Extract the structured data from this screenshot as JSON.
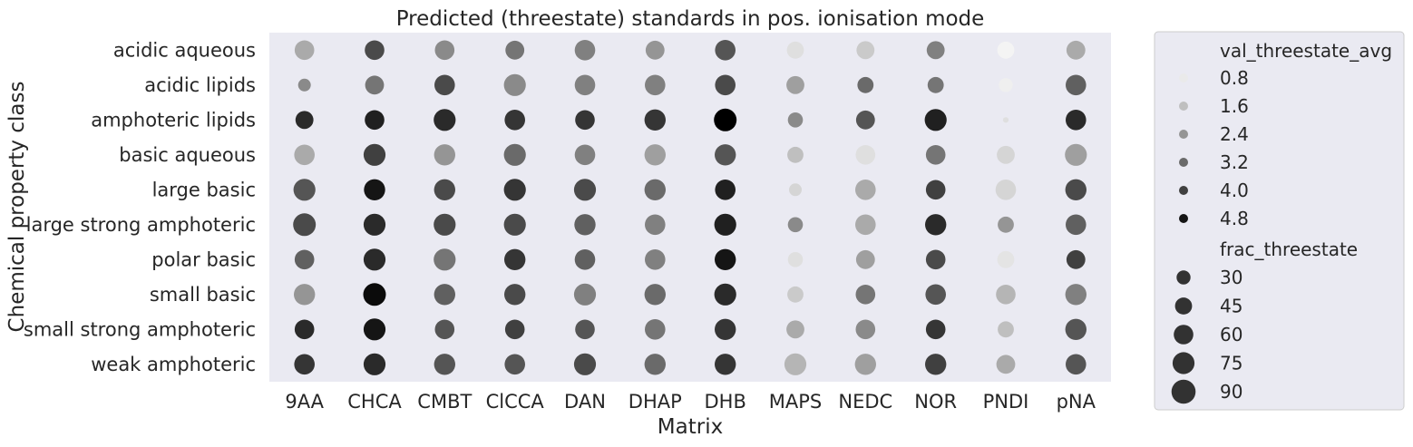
{
  "chart_data": {
    "type": "scatter",
    "title": "Predicted (threestate) standards in pos. ionisation mode",
    "xlabel": "Matrix",
    "ylabel": "Chemical property class",
    "categories_x": [
      "9AA",
      "CHCA",
      "CMBT",
      "ClCCA",
      "DAN",
      "DHAP",
      "DHB",
      "MAPS",
      "NEDC",
      "NOR",
      "PNDI",
      "pNA"
    ],
    "categories_y": [
      "acidic aqueous",
      "acidic lipids",
      "amphoteric lipids",
      "basic aqueous",
      "large basic",
      "large strong amphoteric",
      "polar basic",
      "small basic",
      "small strong amphoteric",
      "weak amphoteric"
    ],
    "color_variable": "val_threestate_avg",
    "size_variable": "frac_threestate",
    "color_range": [
      0.4,
      5.2
    ],
    "size_range": [
      0,
      100
    ],
    "grid": false,
    "legend_placement": "outside-right",
    "points": [
      {
        "x": "9AA",
        "y": "acidic aqueous",
        "color": 2.0,
        "size": 60
      },
      {
        "x": "CHCA",
        "y": "acidic aqueous",
        "color": 3.8,
        "size": 60
      },
      {
        "x": "CMBT",
        "y": "acidic aqueous",
        "color": 2.6,
        "size": 60
      },
      {
        "x": "ClCCA",
        "y": "acidic aqueous",
        "color": 3.0,
        "size": 55
      },
      {
        "x": "DAN",
        "y": "acidic aqueous",
        "color": 2.8,
        "size": 65
      },
      {
        "x": "DHAP",
        "y": "acidic aqueous",
        "color": 2.4,
        "size": 55
      },
      {
        "x": "DHB",
        "y": "acidic aqueous",
        "color": 3.6,
        "size": 65
      },
      {
        "x": "MAPS",
        "y": "acidic aqueous",
        "color": 1.0,
        "size": 45
      },
      {
        "x": "NEDC",
        "y": "acidic aqueous",
        "color": 1.4,
        "size": 50
      },
      {
        "x": "NOR",
        "y": "acidic aqueous",
        "color": 2.8,
        "size": 50
      },
      {
        "x": "PNDI",
        "y": "acidic aqueous",
        "color": 0.6,
        "size": 45
      },
      {
        "x": "pNA",
        "y": "acidic aqueous",
        "color": 2.0,
        "size": 55
      },
      {
        "x": "9AA",
        "y": "acidic lipids",
        "color": 2.6,
        "size": 25
      },
      {
        "x": "CHCA",
        "y": "acidic lipids",
        "color": 3.0,
        "size": 55
      },
      {
        "x": "CMBT",
        "y": "acidic lipids",
        "color": 3.8,
        "size": 65
      },
      {
        "x": "ClCCA",
        "y": "acidic lipids",
        "color": 2.6,
        "size": 75
      },
      {
        "x": "DAN",
        "y": "acidic lipids",
        "color": 2.8,
        "size": 65
      },
      {
        "x": "DHAP",
        "y": "acidic lipids",
        "color": 2.8,
        "size": 65
      },
      {
        "x": "DHB",
        "y": "acidic lipids",
        "color": 3.8,
        "size": 65
      },
      {
        "x": "MAPS",
        "y": "acidic lipids",
        "color": 2.2,
        "size": 50
      },
      {
        "x": "NEDC",
        "y": "acidic lipids",
        "color": 3.2,
        "size": 40
      },
      {
        "x": "NOR",
        "y": "acidic lipids",
        "color": 3.0,
        "size": 40
      },
      {
        "x": "PNDI",
        "y": "acidic lipids",
        "color": 0.7,
        "size": 30
      },
      {
        "x": "pNA",
        "y": "acidic lipids",
        "color": 3.4,
        "size": 65
      },
      {
        "x": "9AA",
        "y": "amphoteric lipids",
        "color": 4.4,
        "size": 50
      },
      {
        "x": "CHCA",
        "y": "amphoteric lipids",
        "color": 4.6,
        "size": 60
      },
      {
        "x": "CMBT",
        "y": "amphoteric lipids",
        "color": 4.4,
        "size": 75
      },
      {
        "x": "ClCCA",
        "y": "amphoteric lipids",
        "color": 4.2,
        "size": 65
      },
      {
        "x": "DAN",
        "y": "amphoteric lipids",
        "color": 4.2,
        "size": 60
      },
      {
        "x": "DHAP",
        "y": "amphoteric lipids",
        "color": 4.2,
        "size": 70
      },
      {
        "x": "DHB",
        "y": "amphoteric lipids",
        "color": 5.2,
        "size": 80
      },
      {
        "x": "MAPS",
        "y": "amphoteric lipids",
        "color": 2.6,
        "size": 35
      },
      {
        "x": "NEDC",
        "y": "amphoteric lipids",
        "color": 3.6,
        "size": 55
      },
      {
        "x": "NOR",
        "y": "amphoteric lipids",
        "color": 4.6,
        "size": 75
      },
      {
        "x": "PNDI",
        "y": "amphoteric lipids",
        "color": 1.0,
        "size": 5
      },
      {
        "x": "pNA",
        "y": "amphoteric lipids",
        "color": 4.4,
        "size": 65
      },
      {
        "x": "9AA",
        "y": "basic aqueous",
        "color": 2.0,
        "size": 65
      },
      {
        "x": "CHCA",
        "y": "basic aqueous",
        "color": 4.0,
        "size": 75
      },
      {
        "x": "CMBT",
        "y": "basic aqueous",
        "color": 2.4,
        "size": 70
      },
      {
        "x": "ClCCA",
        "y": "basic aqueous",
        "color": 3.2,
        "size": 75
      },
      {
        "x": "DAN",
        "y": "basic aqueous",
        "color": 2.8,
        "size": 65
      },
      {
        "x": "DHAP",
        "y": "basic aqueous",
        "color": 2.2,
        "size": 70
      },
      {
        "x": "DHB",
        "y": "basic aqueous",
        "color": 3.6,
        "size": 70
      },
      {
        "x": "MAPS",
        "y": "basic aqueous",
        "color": 1.6,
        "size": 40
      },
      {
        "x": "NEDC",
        "y": "basic aqueous",
        "color": 1.0,
        "size": 60
      },
      {
        "x": "NOR",
        "y": "basic aqueous",
        "color": 3.0,
        "size": 60
      },
      {
        "x": "PNDI",
        "y": "basic aqueous",
        "color": 1.2,
        "size": 50
      },
      {
        "x": "pNA",
        "y": "basic aqueous",
        "color": 2.2,
        "size": 75
      },
      {
        "x": "9AA",
        "y": "large basic",
        "color": 3.6,
        "size": 75
      },
      {
        "x": "CHCA",
        "y": "large basic",
        "color": 4.8,
        "size": 70
      },
      {
        "x": "CMBT",
        "y": "large basic",
        "color": 3.8,
        "size": 70
      },
      {
        "x": "ClCCA",
        "y": "large basic",
        "color": 4.2,
        "size": 75
      },
      {
        "x": "DAN",
        "y": "large basic",
        "color": 3.8,
        "size": 75
      },
      {
        "x": "DHAP",
        "y": "large basic",
        "color": 3.2,
        "size": 70
      },
      {
        "x": "DHB",
        "y": "large basic",
        "color": 4.6,
        "size": 65
      },
      {
        "x": "MAPS",
        "y": "large basic",
        "color": 1.2,
        "size": 25
      },
      {
        "x": "NEDC",
        "y": "large basic",
        "color": 2.0,
        "size": 65
      },
      {
        "x": "NOR",
        "y": "large basic",
        "color": 4.0,
        "size": 60
      },
      {
        "x": "PNDI",
        "y": "large basic",
        "color": 1.2,
        "size": 65
      },
      {
        "x": "pNA",
        "y": "large basic",
        "color": 3.8,
        "size": 70
      },
      {
        "x": "9AA",
        "y": "large strong amphoteric",
        "color": 3.8,
        "size": 80
      },
      {
        "x": "CHCA",
        "y": "large strong amphoteric",
        "color": 4.4,
        "size": 75
      },
      {
        "x": "CMBT",
        "y": "large strong amphoteric",
        "color": 3.8,
        "size": 75
      },
      {
        "x": "ClCCA",
        "y": "large strong amphoteric",
        "color": 3.8,
        "size": 75
      },
      {
        "x": "DAN",
        "y": "large strong amphoteric",
        "color": 3.4,
        "size": 70
      },
      {
        "x": "DHAP",
        "y": "large strong amphoteric",
        "color": 2.8,
        "size": 65
      },
      {
        "x": "DHB",
        "y": "large strong amphoteric",
        "color": 4.6,
        "size": 75
      },
      {
        "x": "MAPS",
        "y": "large strong amphoteric",
        "color": 2.6,
        "size": 35
      },
      {
        "x": "NEDC",
        "y": "large strong amphoteric",
        "color": 2.0,
        "size": 65
      },
      {
        "x": "NOR",
        "y": "large strong amphoteric",
        "color": 4.4,
        "size": 70
      },
      {
        "x": "PNDI",
        "y": "large strong amphoteric",
        "color": 2.4,
        "size": 40
      },
      {
        "x": "pNA",
        "y": "large strong amphoteric",
        "color": 3.4,
        "size": 65
      },
      {
        "x": "9AA",
        "y": "polar basic",
        "color": 3.4,
        "size": 60
      },
      {
        "x": "CHCA",
        "y": "polar basic",
        "color": 4.4,
        "size": 75
      },
      {
        "x": "CMBT",
        "y": "polar basic",
        "color": 3.0,
        "size": 75
      },
      {
        "x": "ClCCA",
        "y": "polar basic",
        "color": 4.2,
        "size": 70
      },
      {
        "x": "DAN",
        "y": "polar basic",
        "color": 3.4,
        "size": 65
      },
      {
        "x": "DHAP",
        "y": "polar basic",
        "color": 2.8,
        "size": 65
      },
      {
        "x": "DHB",
        "y": "polar basic",
        "color": 4.8,
        "size": 70
      },
      {
        "x": "MAPS",
        "y": "polar basic",
        "color": 1.0,
        "size": 35
      },
      {
        "x": "NEDC",
        "y": "polar basic",
        "color": 2.2,
        "size": 55
      },
      {
        "x": "NOR",
        "y": "polar basic",
        "color": 3.8,
        "size": 60
      },
      {
        "x": "PNDI",
        "y": "polar basic",
        "color": 0.9,
        "size": 45
      },
      {
        "x": "pNA",
        "y": "polar basic",
        "color": 4.0,
        "size": 55
      },
      {
        "x": "9AA",
        "y": "small basic",
        "color": 2.4,
        "size": 70
      },
      {
        "x": "CHCA",
        "y": "small basic",
        "color": 5.0,
        "size": 80
      },
      {
        "x": "CMBT",
        "y": "small basic",
        "color": 3.4,
        "size": 70
      },
      {
        "x": "ClCCA",
        "y": "small basic",
        "color": 3.8,
        "size": 70
      },
      {
        "x": "DAN",
        "y": "small basic",
        "color": 2.8,
        "size": 75
      },
      {
        "x": "DHAP",
        "y": "small basic",
        "color": 3.2,
        "size": 70
      },
      {
        "x": "DHB",
        "y": "small basic",
        "color": 4.4,
        "size": 75
      },
      {
        "x": "MAPS",
        "y": "small basic",
        "color": 1.4,
        "size": 40
      },
      {
        "x": "NEDC",
        "y": "small basic",
        "color": 3.0,
        "size": 60
      },
      {
        "x": "NOR",
        "y": "small basic",
        "color": 3.6,
        "size": 65
      },
      {
        "x": "PNDI",
        "y": "small basic",
        "color": 1.8,
        "size": 60
      },
      {
        "x": "pNA",
        "y": "small basic",
        "color": 2.8,
        "size": 70
      },
      {
        "x": "9AA",
        "y": "small strong amphoteric",
        "color": 4.4,
        "size": 60
      },
      {
        "x": "CHCA",
        "y": "small strong amphoteric",
        "color": 4.8,
        "size": 75
      },
      {
        "x": "CMBT",
        "y": "small strong amphoteric",
        "color": 3.6,
        "size": 60
      },
      {
        "x": "ClCCA",
        "y": "small strong amphoteric",
        "color": 4.0,
        "size": 60
      },
      {
        "x": "DAN",
        "y": "small strong amphoteric",
        "color": 3.6,
        "size": 60
      },
      {
        "x": "DHAP",
        "y": "small strong amphoteric",
        "color": 3.0,
        "size": 65
      },
      {
        "x": "DHB",
        "y": "small strong amphoteric",
        "color": 4.2,
        "size": 70
      },
      {
        "x": "MAPS",
        "y": "small strong amphoteric",
        "color": 2.0,
        "size": 50
      },
      {
        "x": "NEDC",
        "y": "small strong amphoteric",
        "color": 2.6,
        "size": 60
      },
      {
        "x": "NOR",
        "y": "small strong amphoteric",
        "color": 4.2,
        "size": 60
      },
      {
        "x": "PNDI",
        "y": "small strong amphoteric",
        "color": 1.6,
        "size": 40
      },
      {
        "x": "pNA",
        "y": "small strong amphoteric",
        "color": 3.6,
        "size": 70
      },
      {
        "x": "9AA",
        "y": "weak amphoteric",
        "color": 4.2,
        "size": 65
      },
      {
        "x": "CHCA",
        "y": "weak amphoteric",
        "color": 4.4,
        "size": 75
      },
      {
        "x": "CMBT",
        "y": "weak amphoteric",
        "color": 3.6,
        "size": 70
      },
      {
        "x": "ClCCA",
        "y": "weak amphoteric",
        "color": 3.6,
        "size": 65
      },
      {
        "x": "DAN",
        "y": "weak amphoteric",
        "color": 3.8,
        "size": 75
      },
      {
        "x": "DHAP",
        "y": "weak amphoteric",
        "color": 3.2,
        "size": 70
      },
      {
        "x": "DHB",
        "y": "weak amphoteric",
        "color": 4.2,
        "size": 70
      },
      {
        "x": "MAPS",
        "y": "weak amphoteric",
        "color": 1.8,
        "size": 75
      },
      {
        "x": "NEDC",
        "y": "weak amphoteric",
        "color": 2.2,
        "size": 70
      },
      {
        "x": "NOR",
        "y": "weak amphoteric",
        "color": 4.0,
        "size": 70
      },
      {
        "x": "PNDI",
        "y": "weak amphoteric",
        "color": 2.0,
        "size": 55
      },
      {
        "x": "pNA",
        "y": "weak amphoteric",
        "color": 3.6,
        "size": 65
      }
    ],
    "legend": {
      "color_title": "val_threestate_avg",
      "color_entries": [
        {
          "label": "0.8",
          "value": 0.8
        },
        {
          "label": "1.6",
          "value": 1.6
        },
        {
          "label": "2.4",
          "value": 2.4
        },
        {
          "label": "3.2",
          "value": 3.2
        },
        {
          "label": "4.0",
          "value": 4.0
        },
        {
          "label": "4.8",
          "value": 4.8
        }
      ],
      "size_title": "frac_threestate",
      "size_entries": [
        {
          "label": "30",
          "value": 30
        },
        {
          "label": "45",
          "value": 45
        },
        {
          "label": "60",
          "value": 60
        },
        {
          "label": "75",
          "value": 75
        },
        {
          "label": "90",
          "value": 90
        }
      ]
    },
    "colors": {
      "plot_background": "#eaeaf2",
      "legend_background": "#eaeaf2",
      "legend_border": "#cccccc",
      "marker_dark": "#000000",
      "marker_light": "#ffffff"
    }
  }
}
